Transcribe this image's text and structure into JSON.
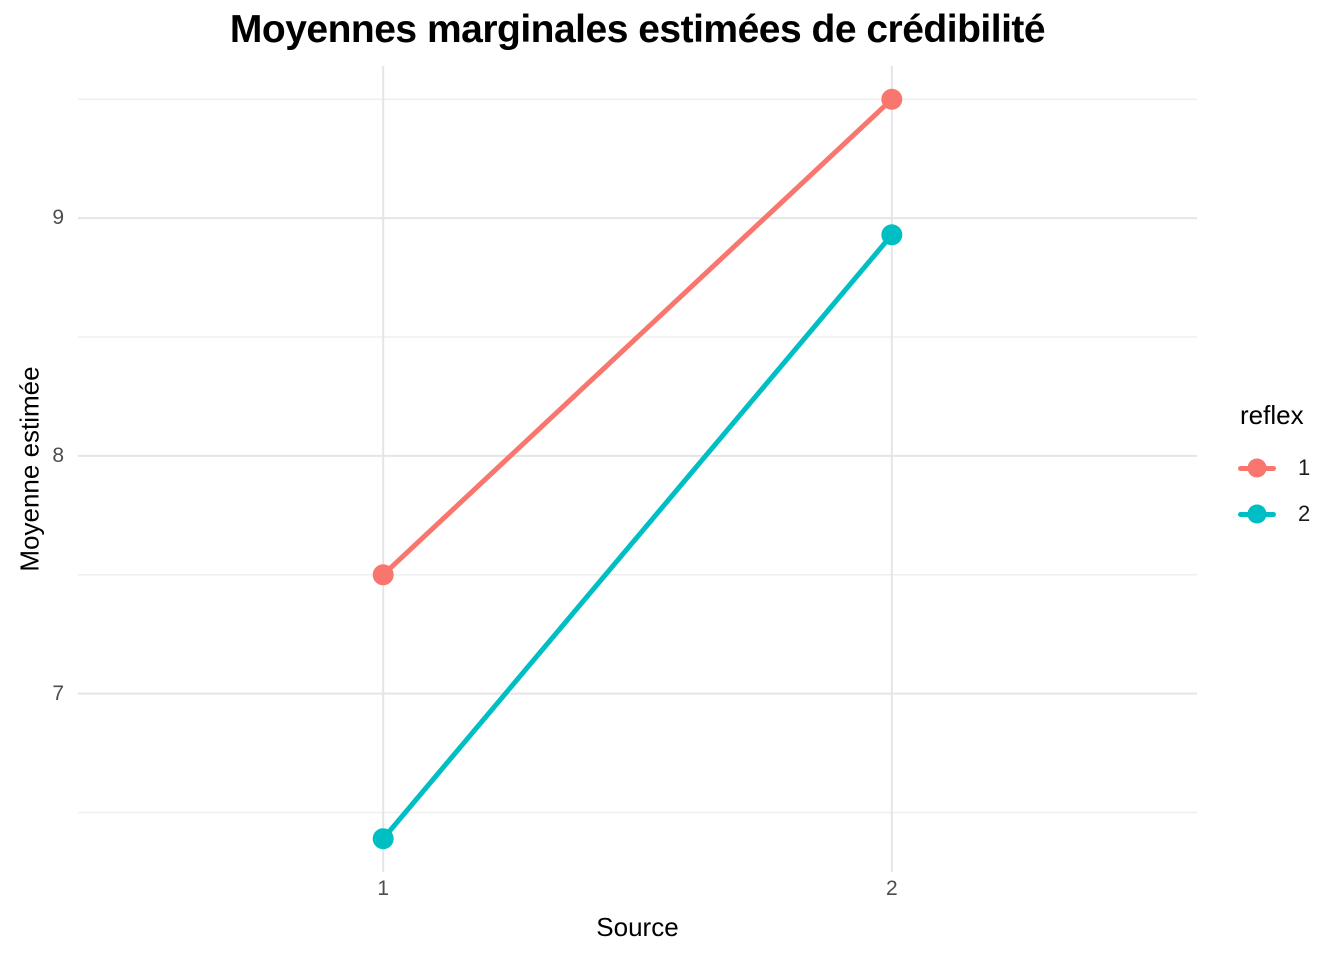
{
  "chart_data": {
    "type": "line",
    "title": "Moyennes marginales estimées de crédibilité",
    "xlabel": "Source",
    "ylabel": "Moyenne estimée",
    "categories": [
      "1",
      "2"
    ],
    "series": [
      {
        "name": "1",
        "color": "#F8766D",
        "values": [
          7.5,
          9.5
        ]
      },
      {
        "name": "2",
        "color": "#00BFC4",
        "values": [
          6.39,
          8.93
        ]
      }
    ],
    "legend": {
      "title": "reflex",
      "position": "right"
    },
    "yticks": [
      7,
      8,
      9
    ],
    "yticks_minor": [
      6.5,
      7.5,
      8.5,
      9.5
    ],
    "ylim": [
      6.25,
      9.64
    ],
    "grid": true,
    "colors": {
      "background": "#FFFFFF",
      "grid_major": "#E5E5E5",
      "grid_minor": "#EFEFEF",
      "tick_text": "#4D4D4D",
      "text": "#000000"
    }
  }
}
